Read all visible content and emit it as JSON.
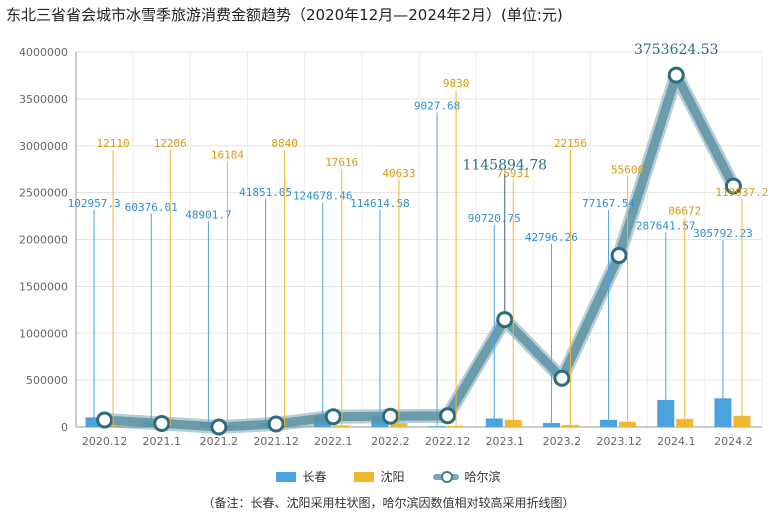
{
  "chart_data": {
    "type": "bar",
    "title": "东北三省省会城市冰雪季旅游消费金额趋势（2020年12月—2024年2月）(单位:元)",
    "categories": [
      "2020.12",
      "2021.1",
      "2021.2",
      "2021.12",
      "2022.1",
      "2022.2",
      "2022.12",
      "2023.1",
      "2023.2",
      "2023.12",
      "2024.1",
      "2024.2"
    ],
    "ylim": [
      0,
      4000000
    ],
    "yticks": [
      "0",
      "500000",
      "1000000",
      "1500000",
      "2000000",
      "2500000",
      "3000000",
      "3500000",
      "4000000"
    ],
    "ytick_values": [
      0,
      500000,
      1000000,
      1500000,
      2000000,
      2500000,
      3000000,
      3500000,
      4000000
    ],
    "grid": true,
    "series": [
      {
        "name": "长春",
        "kind": "bar",
        "color": "#4aa3df",
        "values": [
          102957.3,
          60376.01,
          48901.7,
          41851.05,
          124678.46,
          114614.58,
          9027.68,
          90720.75,
          42796.26,
          77167.54,
          287641.57,
          305792.23
        ],
        "labels": [
          "102957.3",
          "60376.01",
          "48901.7",
          "41851.05",
          "124678.46",
          "114614.58",
          "9027.68",
          "90720.75",
          "42796.26",
          "77167.54",
          "287641.57",
          "305792.23"
        ]
      },
      {
        "name": "沈阳",
        "kind": "bar",
        "color": "#f2b630",
        "values": [
          12110,
          12206,
          16184,
          8840,
          17616,
          40633,
          9830,
          75931,
          22156,
          55600,
          86672,
          119937.2
        ],
        "labels": [
          "12110",
          "12206",
          "16184",
          "8840",
          "17616",
          "40633",
          "9830",
          "75931",
          "22156",
          "55600",
          "86672",
          "119937.2"
        ]
      },
      {
        "name": "哈尔滨",
        "kind": "line",
        "color": "#5d93a3",
        "values": [
          75000,
          38000,
          0,
          32000,
          110000,
          115000,
          120000,
          1145894.78,
          520000,
          1830000,
          3753624.53,
          2570000
        ],
        "labels": [
          "",
          "",
          "",
          "",
          "",
          "",
          "",
          "1145894.78",
          "",
          "",
          "3753624.53",
          ""
        ]
      }
    ],
    "legend_position": "bottom"
  },
  "footnote": "（备注：长春、沈阳采用柱状图，哈尔滨因数值相对较高采用折线图）"
}
